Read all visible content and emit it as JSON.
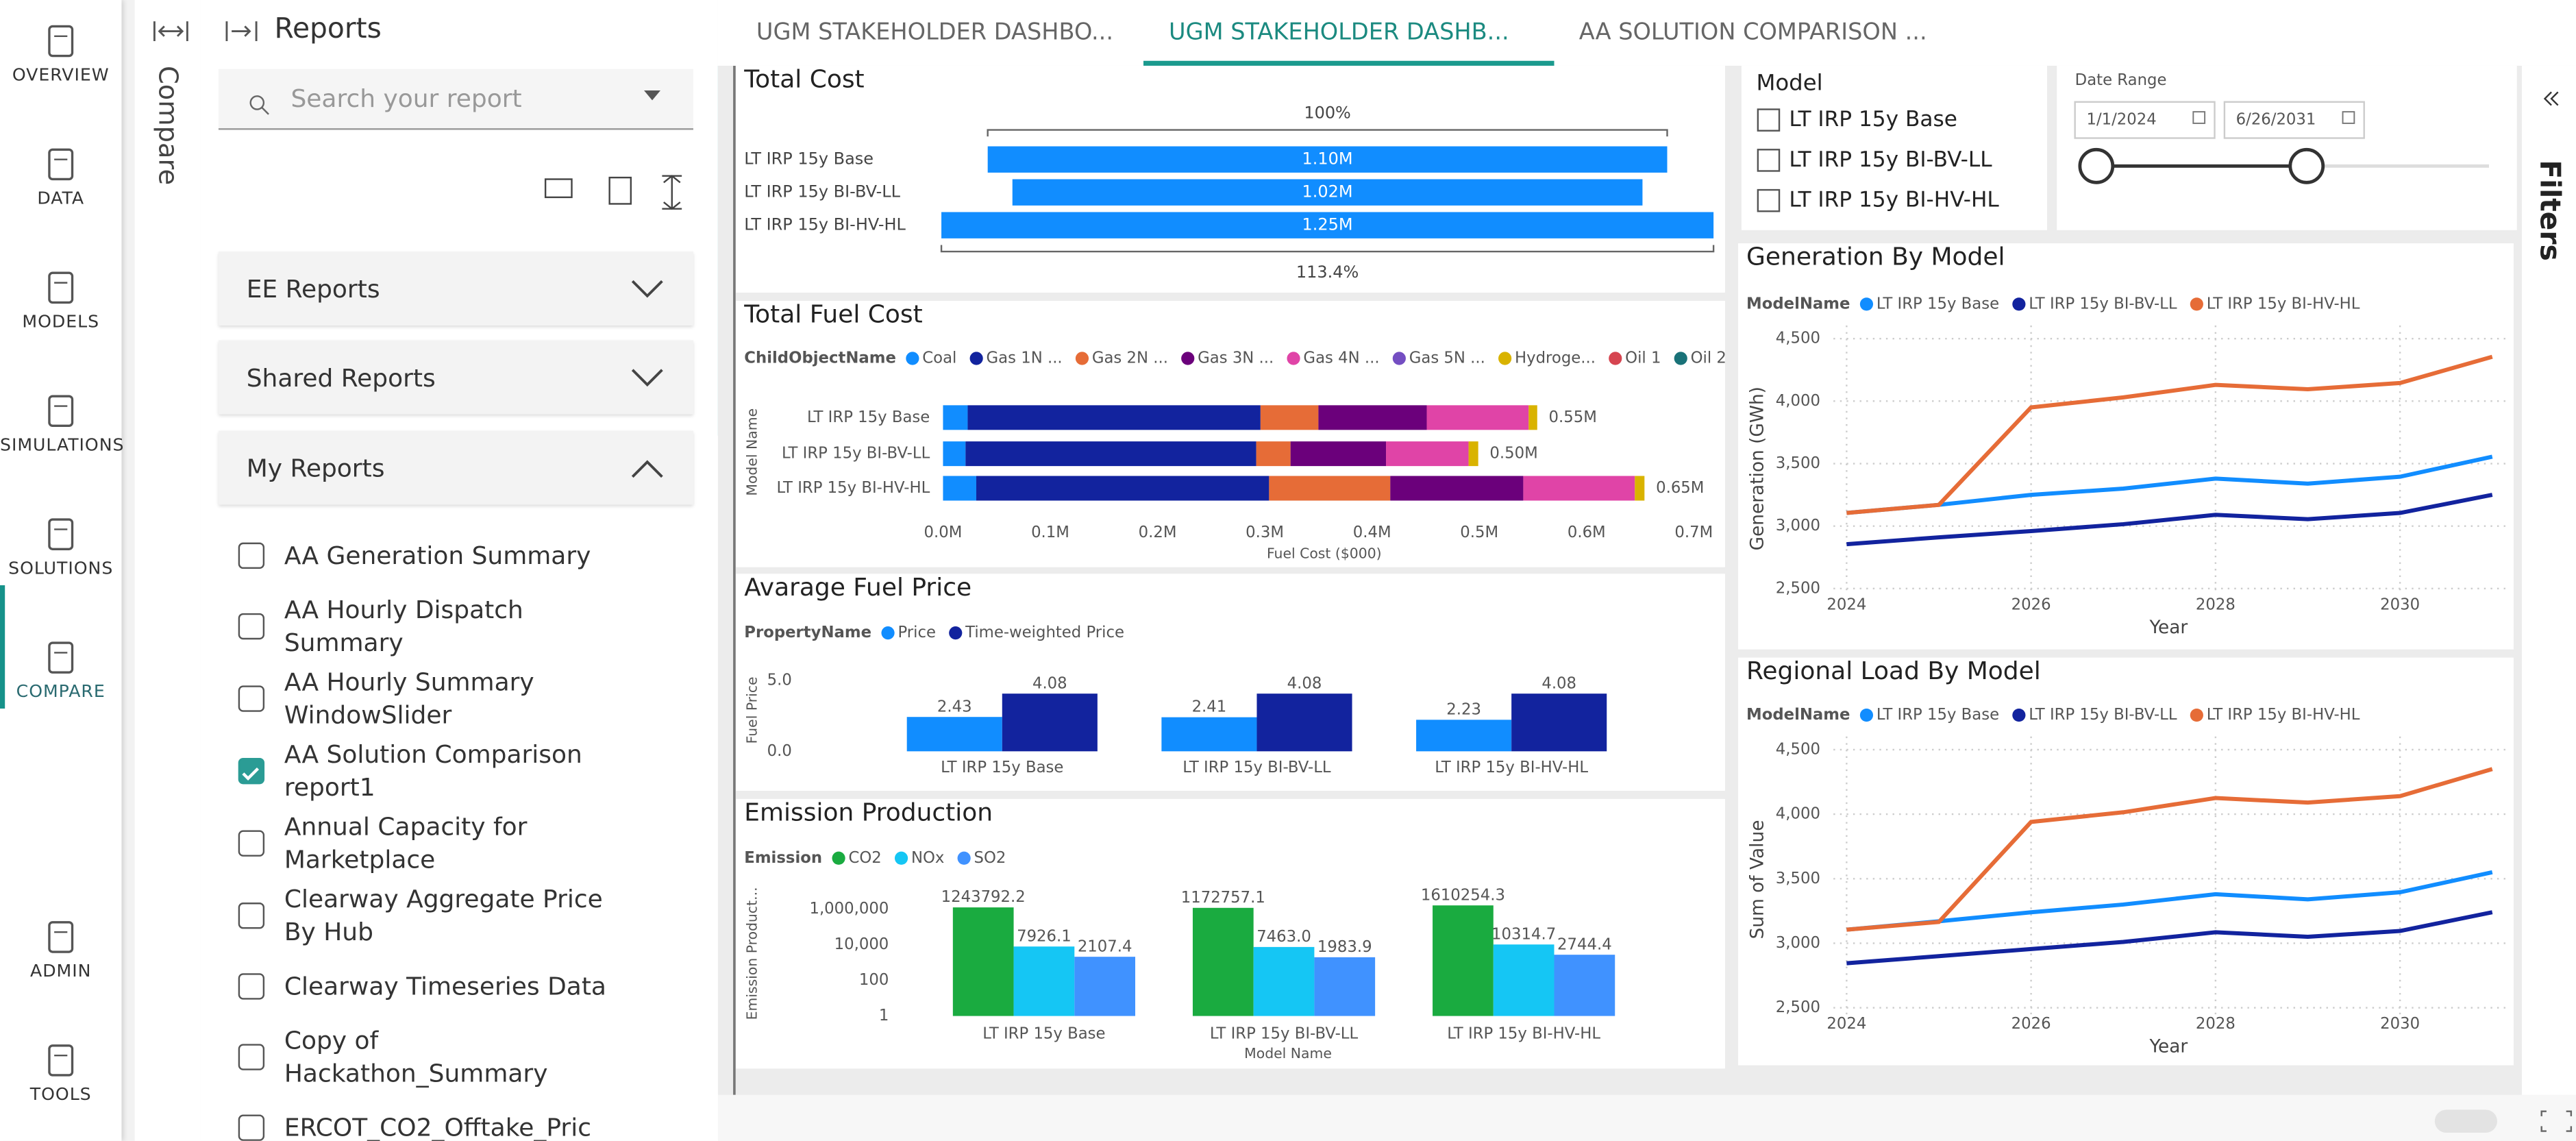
{
  "nav": {
    "items": [
      "OVERVIEW",
      "DATA",
      "MODELS",
      "SIMULATIONS",
      "SOLUTIONS",
      "COMPARE",
      "ADMIN",
      "TOOLS"
    ],
    "active": 5
  },
  "compare_label": "Compare",
  "sidebar": {
    "title": "Reports",
    "search_placeholder": "Search your report",
    "sections": [
      "EE Reports",
      "Shared Reports",
      "My Reports"
    ],
    "expanded": 2,
    "reports": [
      {
        "name": "AA Generation Summary",
        "checked": false
      },
      {
        "name": "AA Hourly Dispatch Summary",
        "checked": false
      },
      {
        "name": "AA Hourly Summary WindowSlider",
        "checked": false
      },
      {
        "name": "AA Solution Comparison report1",
        "checked": true
      },
      {
        "name": "Annual Capacity for Marketplace",
        "checked": false
      },
      {
        "name": "Clearway Aggregate Price By Hub",
        "checked": false
      },
      {
        "name": "Clearway Timeseries Data",
        "checked": false
      },
      {
        "name": "Copy of Hackathon_Summary",
        "checked": false
      },
      {
        "name": "ERCOT_CO2_Offtake_Pric",
        "checked": false
      }
    ]
  },
  "tabs": [
    "UGM STAKEHOLDER DASHBO...",
    "UGM STAKEHOLDER DASHB...",
    "AA SOLUTION COMPARISON ..."
  ],
  "active_tab": 1,
  "filters_label": "Filters",
  "model_slicer": {
    "title": "Model",
    "items": [
      "LT IRP 15y Base",
      "LT IRP 15y BI-BV-LL",
      "LT IRP 15y BI-HV-HL"
    ]
  },
  "date_range": {
    "title": "Date Range",
    "start": "1/1/2024",
    "end": "6/26/2031"
  },
  "chart_data": [
    {
      "type": "bar",
      "title": "Total Cost",
      "categories": [
        "LT IRP 15y Base",
        "LT IRP 15y BI-BV-LL",
        "LT IRP 15y BI-HV-HL"
      ],
      "values": [
        1100000,
        1020000,
        1250000
      ],
      "value_labels": [
        "1.10M",
        "1.02M",
        "1.25M"
      ],
      "color": "#118dff",
      "annotations": [
        "100%",
        "113.4%"
      ]
    },
    {
      "type": "stackedbar",
      "title": "Total Fuel Cost",
      "legend_title": "ChildObjectName",
      "x_label": "Fuel Cost ($000)",
      "y_label": "Model Name",
      "categories": [
        "LT IRP 15y Base",
        "LT IRP 15y BI-BV-LL",
        "LT IRP 15y BI-HV-HL"
      ],
      "series": [
        {
          "name": "Coal",
          "color": "#118dff",
          "values": [
            23000,
            21000,
            31000
          ]
        },
        {
          "name": "Gas 1N ...",
          "color": "#12239e",
          "values": [
            273000,
            271000,
            273000
          ]
        },
        {
          "name": "Gas 2N ...",
          "color": "#e66c37",
          "values": [
            54000,
            32000,
            113000
          ]
        },
        {
          "name": "Gas 3N ...",
          "color": "#6b007b",
          "values": [
            101000,
            89000,
            124000
          ]
        },
        {
          "name": "Gas 4N ...",
          "color": "#e044a7",
          "values": [
            95000,
            77000,
            104000
          ]
        },
        {
          "name": "Gas 5N ...",
          "color": "#744ec2",
          "values": [
            0,
            0,
            0
          ]
        },
        {
          "name": "Hydroge...",
          "color": "#d9b300",
          "values": [
            8000,
            9000,
            9000
          ]
        },
        {
          "name": "Oil 1",
          "color": "#d64550",
          "values": [
            0,
            0,
            0
          ]
        },
        {
          "name": "Oil 2",
          "color": "#197278",
          "values": [
            0,
            0,
            0
          ]
        }
      ],
      "totals": [
        554000,
        499000,
        654000
      ],
      "total_labels": [
        "0.55M",
        "0.50M",
        "0.65M"
      ],
      "xlim": [
        0,
        700000
      ],
      "xticks": [
        {
          "value": 0,
          "label": "0.0M"
        },
        {
          "value": 100000,
          "label": "0.1M"
        },
        {
          "value": 200000,
          "label": "0.2M"
        },
        {
          "value": 300000,
          "label": "0.3M"
        },
        {
          "value": 400000,
          "label": "0.4M"
        },
        {
          "value": 500000,
          "label": "0.5M"
        },
        {
          "value": 600000,
          "label": "0.6M"
        },
        {
          "value": 700000,
          "label": "0.7M"
        }
      ]
    },
    {
      "type": "groupedbar",
      "title": "Avarage Fuel Price",
      "legend_title": "PropertyName",
      "y_label": "Fuel Price",
      "categories": [
        "LT IRP 15y Base",
        "LT IRP 15y BI-BV-LL",
        "LT IRP 15y BI-HV-HL"
      ],
      "series": [
        {
          "name": "Price",
          "color": "#118dff",
          "values": [
            2.43,
            2.41,
            2.23
          ]
        },
        {
          "name": "Time-weighted Price",
          "color": "#12239e",
          "values": [
            4.08,
            4.08,
            4.08
          ]
        }
      ],
      "ylim": [
        0,
        5
      ],
      "yticks": [
        {
          "value": 0,
          "label": "0.0"
        },
        {
          "value": 5,
          "label": "5.0"
        }
      ],
      "log_scale": false
    },
    {
      "type": "groupedbar",
      "title": "Emission Production",
      "legend_title": "Emission",
      "x_label": "Model Name",
      "y_label": "Emission Product...",
      "categories": [
        "LT IRP 15y Base",
        "LT IRP 15y BI-BV-LL",
        "LT IRP 15y BI-HV-HL"
      ],
      "series": [
        {
          "name": "CO2",
          "color": "#1aab40",
          "values": [
            1243792.2,
            1172757.1,
            1610254.3
          ],
          "value_labels": [
            "1243792.2",
            "1172757.1",
            "1610254.3"
          ]
        },
        {
          "name": "NOx",
          "color": "#15c6f4",
          "values": [
            7926.1,
            7463.0,
            10314.7
          ],
          "value_labels": [
            "7926.1",
            "7463.0",
            "10314.7"
          ]
        },
        {
          "name": "SO2",
          "color": "#4092ff",
          "values": [
            2107.4,
            1983.9,
            2744.4
          ],
          "value_labels": [
            "2107.4",
            "1983.9",
            "2744.4"
          ]
        }
      ],
      "ylim": [
        1,
        5000000
      ],
      "yticks": [
        1,
        100,
        {
          "value": 10000,
          "label": "10,000"
        },
        {
          "value": 1000000,
          "label": "1,000,000"
        }
      ],
      "log_scale": true
    },
    {
      "type": "line",
      "title": "Generation By Model",
      "legend_title": "ModelName",
      "x_label": "Year",
      "y_label": "Generation (GWh)",
      "x": [
        2024,
        2025,
        2026,
        2027,
        2028,
        2029,
        2030,
        2031
      ],
      "series": [
        {
          "name": "LT IRP 15y Base",
          "color": "#118dff",
          "values": [
            3105,
            3170,
            3250,
            3300,
            3380,
            3340,
            3395,
            3555
          ]
        },
        {
          "name": "LT IRP 15y BI-BV-LL",
          "color": "#12239e",
          "values": [
            2855,
            2910,
            2960,
            3015,
            3090,
            3055,
            3105,
            3250
          ]
        },
        {
          "name": "LT IRP 15y BI-HV-HL",
          "color": "#e66c37",
          "values": [
            3105,
            3170,
            3950,
            4030,
            4130,
            4095,
            4145,
            4355
          ]
        }
      ],
      "xlim": [
        2024,
        2031
      ],
      "xticks": [
        2024,
        2026,
        2028,
        2030
      ],
      "ylim": [
        2500,
        4500
      ],
      "yticks": [
        {
          "value": 2500,
          "label": "2,500"
        },
        {
          "value": 3000,
          "label": "3,000"
        },
        {
          "value": 3500,
          "label": "3,500"
        },
        {
          "value": 4000,
          "label": "4,000"
        },
        {
          "value": 4500,
          "label": "4,500"
        }
      ],
      "grid": true
    },
    {
      "type": "line",
      "title": "Regional Load By Model",
      "legend_title": "ModelName",
      "x_label": "Year",
      "y_label": "Sum of Value",
      "x": [
        2024,
        2025,
        2026,
        2027,
        2028,
        2029,
        2030,
        2031
      ],
      "series": [
        {
          "name": "LT IRP 15y Base",
          "color": "#118dff",
          "values": [
            3105,
            3170,
            3240,
            3300,
            3380,
            3340,
            3395,
            3550
          ]
        },
        {
          "name": "LT IRP 15y BI-BV-LL",
          "color": "#12239e",
          "values": [
            2845,
            2900,
            2955,
            3010,
            3085,
            3050,
            3095,
            3240
          ]
        },
        {
          "name": "LT IRP 15y BI-HV-HL",
          "color": "#e66c37",
          "values": [
            3105,
            3165,
            3940,
            4015,
            4125,
            4090,
            4140,
            4350
          ]
        }
      ],
      "xlim": [
        2024,
        2031
      ],
      "xticks": [
        2024,
        2026,
        2028,
        2030
      ],
      "ylim": [
        2500,
        4500
      ],
      "yticks": [
        {
          "value": 2500,
          "label": "2,500"
        },
        {
          "value": 3000,
          "label": "3,000"
        },
        {
          "value": 3500,
          "label": "3,500"
        },
        {
          "value": 4000,
          "label": "4,000"
        },
        {
          "value": 4500,
          "label": "4,500"
        }
      ],
      "grid": true
    }
  ]
}
